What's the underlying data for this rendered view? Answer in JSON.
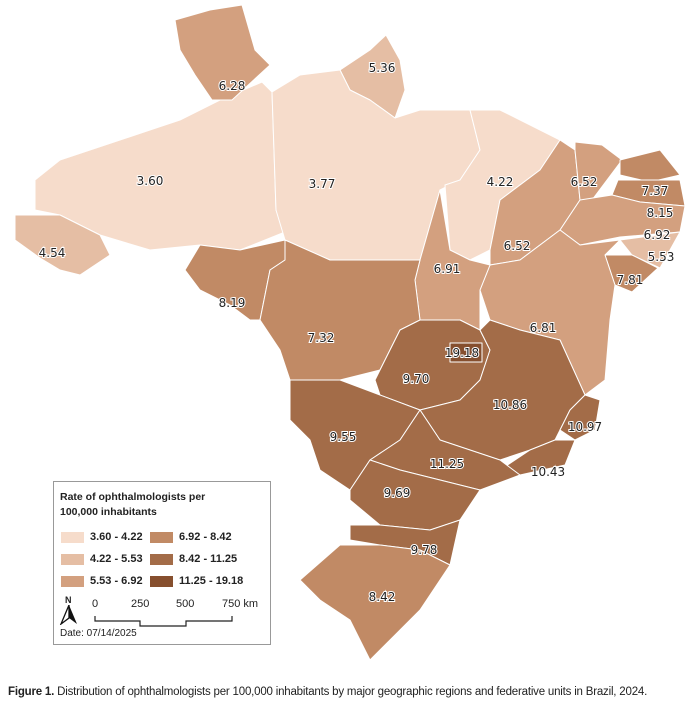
{
  "legend": {
    "title_line1": "Rate of ophthalmologists per",
    "title_line2": "100,000 inhabitants",
    "classes": [
      {
        "label": "3.60 - 4.22",
        "color": "#f6dccb"
      },
      {
        "label": "4.22 - 5.53",
        "color": "#e5bea4"
      },
      {
        "label": "5.53 - 6.92",
        "color": "#d3a07f"
      },
      {
        "label": "6.92 - 8.42",
        "color": "#c18a65"
      },
      {
        "label": "8.42 - 11.25",
        "color": "#a36c48"
      },
      {
        "label": "11.25 - 19.18",
        "color": "#864f2e"
      }
    ],
    "north": "N",
    "scale_ticks": [
      "0",
      "250",
      "500",
      "750 km"
    ],
    "date": "Date: 07/14/2025"
  },
  "regions": [
    {
      "value": "3.60",
      "class": 0
    },
    {
      "value": "4.54",
      "class": 1
    },
    {
      "value": "6.28",
      "class": 2
    },
    {
      "value": "5.36",
      "class": 1
    },
    {
      "value": "3.77",
      "class": 0
    },
    {
      "value": "4.22",
      "class": 0
    },
    {
      "value": "6.52",
      "class": 2
    },
    {
      "value": "6.52",
      "class": 2
    },
    {
      "value": "7.37",
      "class": 3
    },
    {
      "value": "8.15",
      "class": 3
    },
    {
      "value": "6.92",
      "class": 2
    },
    {
      "value": "5.53",
      "class": 1
    },
    {
      "value": "7.81",
      "class": 3
    },
    {
      "value": "6.81",
      "class": 2
    },
    {
      "value": "6.91",
      "class": 2
    },
    {
      "value": "8.19",
      "class": 3
    },
    {
      "value": "7.32",
      "class": 3
    },
    {
      "value": "9.70",
      "class": 4
    },
    {
      "value": "10.86",
      "class": 4
    },
    {
      "value": "10.97",
      "class": 4
    },
    {
      "value": "10.43",
      "class": 4
    },
    {
      "value": "9.55",
      "class": 4
    },
    {
      "value": "11.25",
      "class": 4
    },
    {
      "value": "9.69",
      "class": 4
    },
    {
      "value": "9.78",
      "class": 4
    },
    {
      "value": "8.42",
      "class": 3
    },
    {
      "value": "19.18",
      "class": 5
    }
  ],
  "caption": {
    "bold": "Figure 1.",
    "text": " Distribution of ophthalmologists per 100,000 inhabitants by major geographic regions and federative units in Brazil, 2024."
  }
}
